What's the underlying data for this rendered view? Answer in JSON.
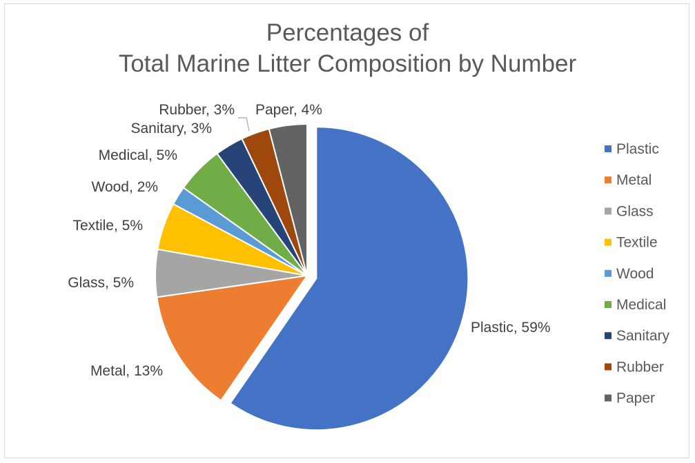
{
  "chart_data": {
    "type": "pie",
    "title": [
      "Percentages of",
      "Total Marine Litter Composition by Number"
    ],
    "categories": [
      "Plastic",
      "Metal",
      "Glass",
      "Textile",
      "Wood",
      "Medical",
      "Sanitary",
      "Rubber",
      "Paper"
    ],
    "values": [
      59,
      13,
      5,
      5,
      2,
      5,
      3,
      3,
      4
    ],
    "data_labels": [
      "Plastic, 59%",
      "Metal, 13%",
      "Glass, 5%",
      "Textile, 5%",
      "Wood, 2%",
      "Medical, 5%",
      "Sanitary, 3%",
      "Rubber, 3%",
      "Paper, 4%"
    ],
    "colors": [
      "#4472c4",
      "#ed7d31",
      "#a5a5a5",
      "#ffc000",
      "#5b9bd5",
      "#70ad47",
      "#264478",
      "#9e480e",
      "#636363"
    ],
    "legend_position": "right",
    "exploded_slice": "Plastic"
  }
}
